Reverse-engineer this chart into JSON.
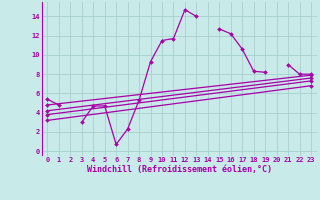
{
  "background_color": "#c8eae8",
  "grid_color": "#a8d0d0",
  "line_color": "#aa00aa",
  "marker": "D",
  "marker_size": 2.0,
  "line_width": 0.9,
  "xlabel": "Windchill (Refroidissement éolien,°C)",
  "xlim": [
    -0.5,
    23.5
  ],
  "ylim": [
    -0.5,
    15.5
  ],
  "xticks": [
    0,
    1,
    2,
    3,
    4,
    5,
    6,
    7,
    8,
    9,
    10,
    11,
    12,
    13,
    14,
    15,
    16,
    17,
    18,
    19,
    20,
    21,
    22,
    23
  ],
  "yticks": [
    0,
    2,
    4,
    6,
    8,
    10,
    12,
    14
  ],
  "series1_x": [
    0,
    1,
    3,
    4,
    5,
    6,
    7,
    8,
    9,
    10,
    11,
    12,
    13,
    15,
    16,
    17,
    18,
    19,
    21,
    22,
    23
  ],
  "series1_y": [
    5.4,
    4.8,
    3.0,
    4.7,
    4.7,
    0.7,
    2.3,
    5.3,
    9.3,
    11.5,
    11.7,
    14.7,
    14.0,
    12.7,
    12.2,
    10.6,
    8.3,
    8.2,
    9.0,
    8.0,
    8.0
  ],
  "series1_breaks": [
    [
      1,
      3
    ],
    [
      13,
      15
    ],
    [
      19,
      21
    ]
  ],
  "series2_x": [
    0,
    23
  ],
  "series2_y": [
    4.8,
    7.9
  ],
  "series3_x": [
    0,
    23
  ],
  "series3_y": [
    4.2,
    7.6
  ],
  "series4_x": [
    0,
    23
  ],
  "series4_y": [
    3.8,
    7.3
  ],
  "series5_x": [
    0,
    23
  ],
  "series5_y": [
    3.2,
    6.8
  ],
  "tick_label_fontsize": 5.0,
  "xlabel_fontsize": 6.0
}
